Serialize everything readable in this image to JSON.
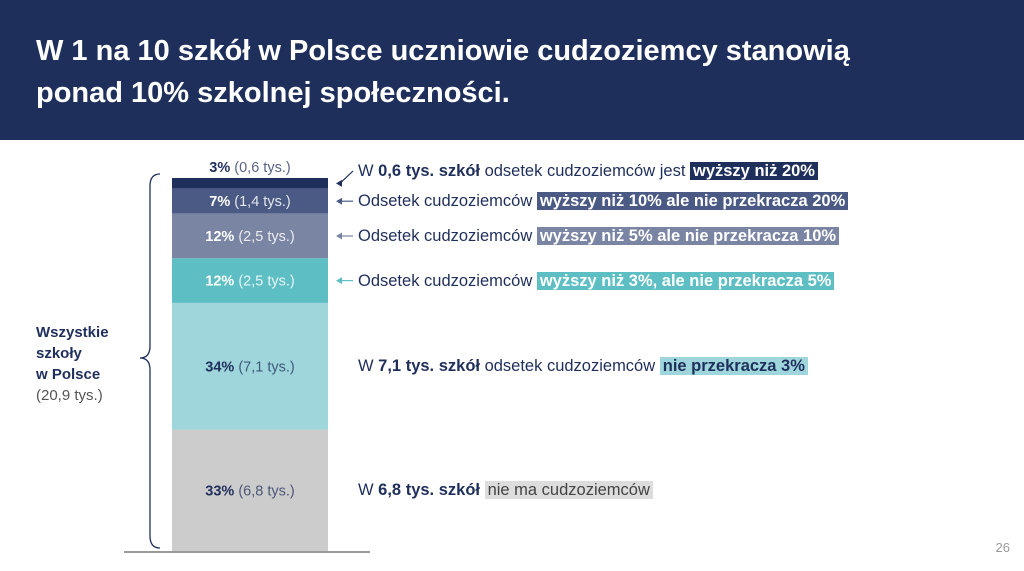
{
  "title_lines": [
    "W 1 na 10 szkół w Polsce uczniowie cudzoziemcy stanowią",
    "ponad 10% szkolnej społeczności."
  ],
  "side_label": {
    "line1": "Wszystkie",
    "line2": "szkoły",
    "line3": "w Polsce",
    "total": "(20,9 tys.)"
  },
  "page_number": "26",
  "chart_data": {
    "type": "bar",
    "stacked": true,
    "orientation": "vertical",
    "segments": [
      {
        "pct": 3,
        "pct_label": "3%",
        "count_label": "(0,6 tys.)",
        "count": 0.6,
        "color": "#1f2f5c",
        "label_color": "#1f2f5c",
        "label_outside": true
      },
      {
        "pct": 7,
        "pct_label": "7%",
        "count_label": "(1,4 tys.)",
        "count": 1.4,
        "color": "#4a5a85",
        "label_color": "#ffffff"
      },
      {
        "pct": 12,
        "pct_label": "12%",
        "count_label": "(2,5 tys.)",
        "count": 2.5,
        "color": "#7a84a3",
        "label_color": "#ffffff"
      },
      {
        "pct": 12,
        "pct_label": "12%",
        "count_label": "(2,5 tys.)",
        "count": 2.5,
        "color": "#5dbfc4",
        "label_color": "#ffffff"
      },
      {
        "pct": 34,
        "pct_label": "34%",
        "count_label": "(7,1 tys.)",
        "count": 7.1,
        "color": "#9ed6db",
        "label_color": "#1f2f5c"
      },
      {
        "pct": 33,
        "pct_label": "33%",
        "count_label": "(6,8 tys.)",
        "count": 6.8,
        "color": "#cccccc",
        "label_color": "#1f2f5c"
      }
    ],
    "annotations": [
      {
        "pre": "W ",
        "bold": "0,6 tys. szkół",
        "mid": " odsetek cudzoziemców jest ",
        "hl": "wyższy niż 20%",
        "hl_color": "#1f2f5c",
        "hl_style": "",
        "arrow": true
      },
      {
        "pre": "Odsetek cudzoziemców ",
        "bold": "",
        "mid": "",
        "hl": "wyższy niż 10% ale nie przekracza 20%",
        "hl_color": "#4a5a85",
        "hl_style": "",
        "arrow": true
      },
      {
        "pre": "Odsetek cudzoziemców ",
        "bold": "",
        "mid": "",
        "hl": "wyższy niż 5% ale nie przekracza 10%",
        "hl_color": "#7a84a3",
        "hl_style": "",
        "arrow": true
      },
      {
        "pre": "Odsetek cudzoziemców ",
        "bold": "",
        "mid": "",
        "hl": "wyższy niż 3%, ale nie przekracza 5%",
        "hl_color": "#5dbfc4",
        "hl_style": "",
        "arrow": true
      },
      {
        "pre": "W ",
        "bold": "7,1 tys. szkół",
        "mid": " odsetek cudzoziemców ",
        "hl": "nie przekracza 3%",
        "hl_color": "#9ed6db",
        "hl_style": "dark",
        "arrow": false
      },
      {
        "pre": "W ",
        "bold": "6,8 tys. szkół",
        "mid": " ",
        "hl": "nie ma cudzoziemców",
        "hl_color": "#dddddd",
        "hl_style": "grey",
        "arrow": false
      }
    ]
  }
}
